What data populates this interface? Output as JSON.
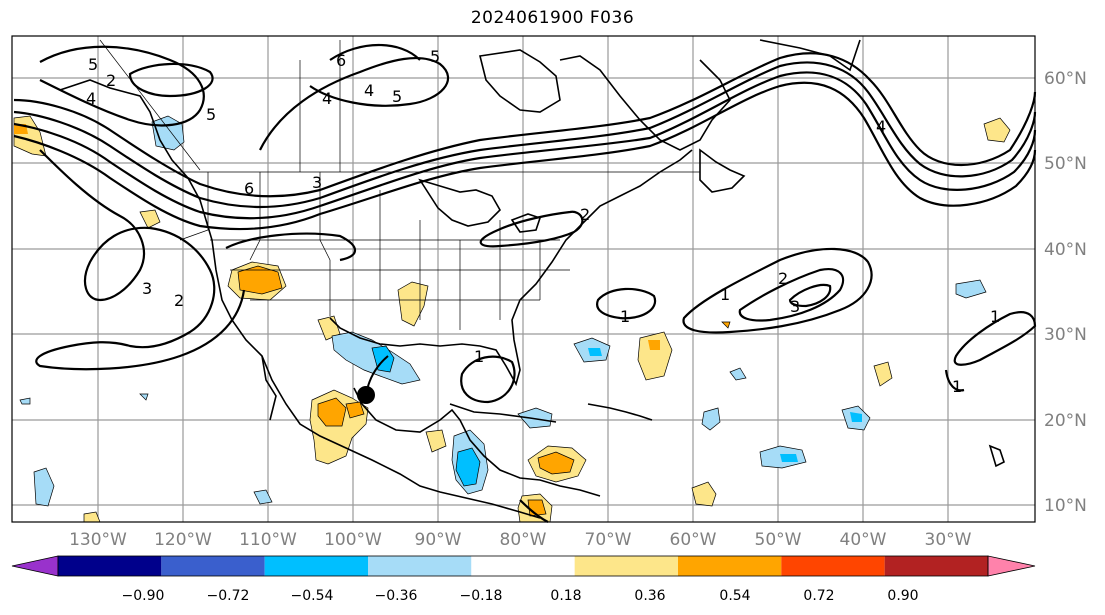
{
  "title": "2024061900 F036",
  "lat_labels": [
    "60°N",
    "50°N",
    "40°N",
    "30°N",
    "20°N",
    "10°N"
  ],
  "lon_labels": [
    "130°W",
    "120°W",
    "110°W",
    "100°W",
    "90°W",
    "80°W",
    "70°W",
    "60°W",
    "50°W",
    "40°W",
    "30°W"
  ],
  "colorbar": {
    "ticks": [
      "−0.90",
      "−0.72",
      "−0.54",
      "−0.36",
      "−0.18",
      "0.18",
      "0.36",
      "0.54",
      "0.72",
      "0.90"
    ],
    "colors": [
      "#9932cc",
      "#00008b",
      "#3a5fcd",
      "#00bfff",
      "#a6dcf7",
      "#ffffff",
      "#fde68a",
      "#ffa500",
      "#ff4500",
      "#b22222",
      "#ff82ab"
    ]
  },
  "contour_labels": [
    "5",
    "2",
    "4",
    "5",
    "6",
    "4",
    "5",
    "5",
    "4",
    "6",
    "3",
    "3",
    "2",
    "1",
    "2",
    "3",
    "4",
    "1",
    "1",
    "2",
    "1",
    "1"
  ],
  "marker": "storm-center"
}
